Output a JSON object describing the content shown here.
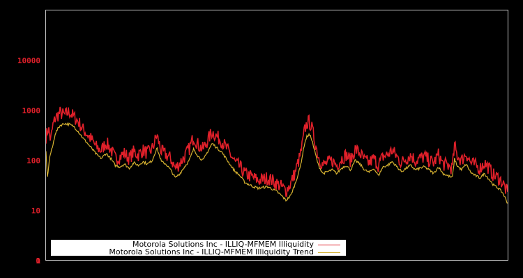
{
  "chart_data": {
    "type": "line",
    "title": "",
    "xlabel": "",
    "ylabel": "",
    "yscale": "log",
    "yticks": [
      {
        "label": "10000",
        "value": 10000
      },
      {
        "label": "1000",
        "value": 1000
      },
      {
        "label": "100",
        "value": 100
      },
      {
        "label": "10",
        "value": 10
      },
      {
        "label": "1",
        "value": 1
      },
      {
        "label": "0",
        "value": 0
      }
    ],
    "ylim": [
      0,
      10000
    ],
    "xticks": [],
    "grid": false,
    "legend_position": "lower-left",
    "x_domain": [
      0,
      1
    ],
    "series": [
      {
        "name": "Motorola Solutions Inc - ILLIQ-MFMEM Illiquidity",
        "color": "#e0202a",
        "points": [
          [
            0.0,
            300
          ],
          [
            0.005,
            450
          ],
          [
            0.01,
            250
          ],
          [
            0.015,
            500
          ],
          [
            0.02,
            700
          ],
          [
            0.03,
            900
          ],
          [
            0.04,
            800
          ],
          [
            0.05,
            950
          ],
          [
            0.06,
            750
          ],
          [
            0.07,
            600
          ],
          [
            0.08,
            420
          ],
          [
            0.09,
            330
          ],
          [
            0.1,
            250
          ],
          [
            0.11,
            180
          ],
          [
            0.12,
            160
          ],
          [
            0.13,
            230
          ],
          [
            0.14,
            170
          ],
          [
            0.15,
            110
          ],
          [
            0.16,
            120
          ],
          [
            0.17,
            140
          ],
          [
            0.18,
            110
          ],
          [
            0.19,
            150
          ],
          [
            0.2,
            130
          ],
          [
            0.21,
            160
          ],
          [
            0.22,
            140
          ],
          [
            0.23,
            170
          ],
          [
            0.24,
            320
          ],
          [
            0.25,
            150
          ],
          [
            0.26,
            130
          ],
          [
            0.27,
            110
          ],
          [
            0.28,
            70
          ],
          [
            0.29,
            90
          ],
          [
            0.3,
            120
          ],
          [
            0.31,
            170
          ],
          [
            0.32,
            300
          ],
          [
            0.33,
            200
          ],
          [
            0.34,
            170
          ],
          [
            0.35,
            250
          ],
          [
            0.36,
            380
          ],
          [
            0.37,
            300
          ],
          [
            0.38,
            250
          ],
          [
            0.39,
            180
          ],
          [
            0.4,
            130
          ],
          [
            0.41,
            90
          ],
          [
            0.42,
            75
          ],
          [
            0.43,
            55
          ],
          [
            0.44,
            50
          ],
          [
            0.45,
            45
          ],
          [
            0.46,
            40
          ],
          [
            0.47,
            42
          ],
          [
            0.48,
            45
          ],
          [
            0.49,
            40
          ],
          [
            0.5,
            35
          ],
          [
            0.51,
            30
          ],
          [
            0.52,
            25
          ],
          [
            0.53,
            35
          ],
          [
            0.54,
            60
          ],
          [
            0.55,
            120
          ],
          [
            0.555,
            200
          ],
          [
            0.56,
            400
          ],
          [
            0.565,
            550
          ],
          [
            0.57,
            600
          ],
          [
            0.575,
            480
          ],
          [
            0.58,
            300
          ],
          [
            0.59,
            120
          ],
          [
            0.6,
            80
          ],
          [
            0.61,
            90
          ],
          [
            0.62,
            100
          ],
          [
            0.63,
            80
          ],
          [
            0.64,
            110
          ],
          [
            0.65,
            130
          ],
          [
            0.66,
            100
          ],
          [
            0.67,
            170
          ],
          [
            0.68,
            140
          ],
          [
            0.69,
            100
          ],
          [
            0.7,
            90
          ],
          [
            0.71,
            110
          ],
          [
            0.72,
            80
          ],
          [
            0.73,
            120
          ],
          [
            0.74,
            130
          ],
          [
            0.75,
            160
          ],
          [
            0.76,
            120
          ],
          [
            0.77,
            90
          ],
          [
            0.78,
            110
          ],
          [
            0.79,
            130
          ],
          [
            0.8,
            100
          ],
          [
            0.81,
            110
          ],
          [
            0.82,
            120
          ],
          [
            0.83,
            100
          ],
          [
            0.84,
            90
          ],
          [
            0.85,
            130
          ],
          [
            0.86,
            85
          ],
          [
            0.87,
            80
          ],
          [
            0.88,
            70
          ],
          [
            0.885,
            200
          ],
          [
            0.89,
            130
          ],
          [
            0.9,
            100
          ],
          [
            0.91,
            140
          ],
          [
            0.92,
            90
          ],
          [
            0.93,
            80
          ],
          [
            0.94,
            70
          ],
          [
            0.95,
            90
          ],
          [
            0.96,
            70
          ],
          [
            0.97,
            50
          ],
          [
            0.98,
            45
          ],
          [
            0.99,
            35
          ],
          [
            1.0,
            22
          ]
        ]
      },
      {
        "name": "Motorola Solutions Inc - ILLIQ-MFMEM Illiquidity Trend",
        "color": "#d4b030",
        "points": [
          [
            0.0,
            150
          ],
          [
            0.003,
            45
          ],
          [
            0.008,
            120
          ],
          [
            0.015,
            200
          ],
          [
            0.02,
            350
          ],
          [
            0.03,
            500
          ],
          [
            0.04,
            550
          ],
          [
            0.05,
            530
          ],
          [
            0.06,
            480
          ],
          [
            0.07,
            380
          ],
          [
            0.08,
            280
          ],
          [
            0.09,
            220
          ],
          [
            0.1,
            170
          ],
          [
            0.11,
            130
          ],
          [
            0.12,
            110
          ],
          [
            0.13,
            140
          ],
          [
            0.14,
            110
          ],
          [
            0.15,
            80
          ],
          [
            0.16,
            75
          ],
          [
            0.17,
            85
          ],
          [
            0.18,
            70
          ],
          [
            0.19,
            90
          ],
          [
            0.2,
            80
          ],
          [
            0.21,
            95
          ],
          [
            0.22,
            85
          ],
          [
            0.23,
            100
          ],
          [
            0.24,
            180
          ],
          [
            0.25,
            95
          ],
          [
            0.26,
            85
          ],
          [
            0.27,
            65
          ],
          [
            0.28,
            45
          ],
          [
            0.29,
            55
          ],
          [
            0.3,
            75
          ],
          [
            0.31,
            100
          ],
          [
            0.32,
            170
          ],
          [
            0.33,
            120
          ],
          [
            0.34,
            100
          ],
          [
            0.35,
            150
          ],
          [
            0.36,
            220
          ],
          [
            0.37,
            180
          ],
          [
            0.38,
            150
          ],
          [
            0.39,
            110
          ],
          [
            0.4,
            80
          ],
          [
            0.41,
            60
          ],
          [
            0.42,
            50
          ],
          [
            0.43,
            37
          ],
          [
            0.44,
            33
          ],
          [
            0.45,
            30
          ],
          [
            0.46,
            28
          ],
          [
            0.47,
            29
          ],
          [
            0.48,
            30
          ],
          [
            0.49,
            27
          ],
          [
            0.5,
            24
          ],
          [
            0.51,
            20
          ],
          [
            0.52,
            16
          ],
          [
            0.53,
            20
          ],
          [
            0.54,
            35
          ],
          [
            0.55,
            70
          ],
          [
            0.555,
            120
          ],
          [
            0.56,
            220
          ],
          [
            0.565,
            300
          ],
          [
            0.57,
            330
          ],
          [
            0.575,
            280
          ],
          [
            0.58,
            180
          ],
          [
            0.59,
            80
          ],
          [
            0.6,
            55
          ],
          [
            0.61,
            60
          ],
          [
            0.62,
            65
          ],
          [
            0.63,
            55
          ],
          [
            0.64,
            70
          ],
          [
            0.65,
            80
          ],
          [
            0.66,
            65
          ],
          [
            0.67,
            100
          ],
          [
            0.68,
            85
          ],
          [
            0.69,
            65
          ],
          [
            0.7,
            58
          ],
          [
            0.71,
            70
          ],
          [
            0.72,
            50
          ],
          [
            0.73,
            75
          ],
          [
            0.74,
            80
          ],
          [
            0.75,
            95
          ],
          [
            0.76,
            75
          ],
          [
            0.77,
            60
          ],
          [
            0.78,
            70
          ],
          [
            0.79,
            80
          ],
          [
            0.8,
            65
          ],
          [
            0.81,
            70
          ],
          [
            0.82,
            75
          ],
          [
            0.83,
            65
          ],
          [
            0.84,
            55
          ],
          [
            0.85,
            75
          ],
          [
            0.86,
            55
          ],
          [
            0.87,
            50
          ],
          [
            0.88,
            45
          ],
          [
            0.885,
            110
          ],
          [
            0.89,
            80
          ],
          [
            0.9,
            65
          ],
          [
            0.91,
            85
          ],
          [
            0.92,
            58
          ],
          [
            0.93,
            50
          ],
          [
            0.94,
            45
          ],
          [
            0.95,
            55
          ],
          [
            0.96,
            42
          ],
          [
            0.97,
            32
          ],
          [
            0.98,
            28
          ],
          [
            0.99,
            22
          ],
          [
            1.0,
            14
          ]
        ]
      }
    ]
  },
  "legend": {
    "items": [
      {
        "label": "Motorola Solutions Inc - ILLIQ-MFMEM Illiquidity",
        "color": "#e0202a"
      },
      {
        "label": "Motorola Solutions Inc - ILLIQ-MFMEM Illiquidity Trend",
        "color": "#d4b030"
      }
    ]
  },
  "style": {
    "background": "#000000",
    "frame_color": "#c8c8c8",
    "tick_color": "#e0202a"
  }
}
